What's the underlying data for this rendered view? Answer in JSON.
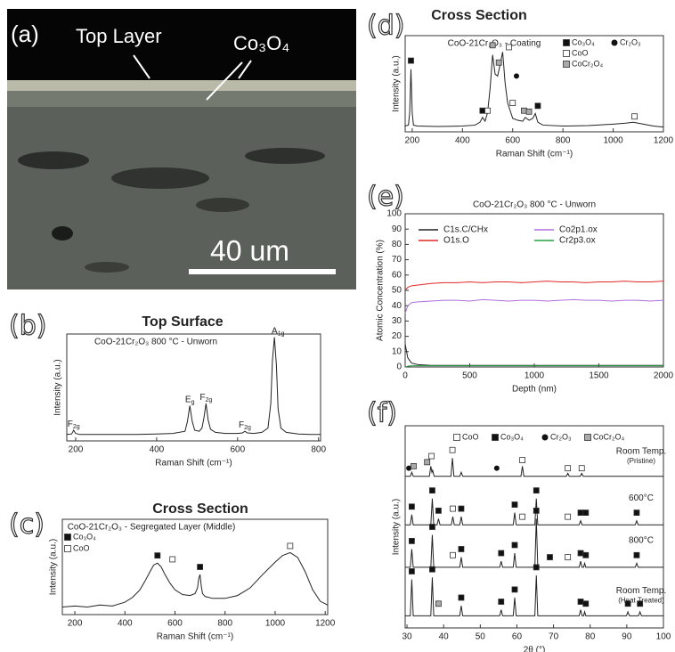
{
  "micrograph": {
    "panel": "(a)",
    "labels": [
      "Top Layer",
      "Co₃O₄",
      "40 um"
    ]
  },
  "chart_data": [
    {
      "type": "line",
      "panel": "(b)",
      "title": "Top Surface",
      "subtitle": "CoO-21Cr₂O₃ 800 °C - Unworn",
      "x_label": "Raman Shift (cm⁻¹)",
      "y_label": "Intensity (a.u.)",
      "xlim": [
        178,
        805
      ],
      "xticks": [
        200,
        400,
        600,
        800
      ],
      "ylim": [
        0,
        100
      ],
      "color": "#222222",
      "x": [
        178,
        190,
        195,
        200,
        210,
        250,
        300,
        350,
        400,
        440,
        470,
        476,
        482,
        488,
        494,
        505,
        512,
        517,
        522,
        527,
        533,
        545,
        570,
        600,
        612,
        618,
        624,
        640,
        660,
        675,
        682,
        686,
        691,
        696,
        700,
        707,
        720,
        750,
        780,
        805
      ],
      "values": [
        6,
        6.5,
        10,
        7,
        6,
        6,
        6,
        6,
        6.5,
        7,
        9,
        18,
        33,
        18,
        10,
        9,
        12,
        22,
        35,
        20,
        11,
        8,
        7,
        7,
        7.5,
        9,
        7.5,
        7,
        8,
        12,
        35,
        75,
        97,
        70,
        30,
        12,
        8,
        6.5,
        6,
        6
      ],
      "peak_labels": [
        {
          "base": "F",
          "sub": "2g",
          "x": 195,
          "y": 10
        },
        {
          "base": "E",
          "sub": "g",
          "x": 482,
          "y": 33
        },
        {
          "base": "F",
          "sub": "2g",
          "x": 522,
          "y": 35
        },
        {
          "base": "F",
          "sub": "2g",
          "x": 618,
          "y": 9
        },
        {
          "base": "A",
          "sub": "1g",
          "x": 700,
          "y": 97
        }
      ]
    },
    {
      "type": "line",
      "panel": "(c)",
      "title": "Cross Section",
      "subtitle": "CoO-21Cr₂O₃ - Segregated Layer (Middle)",
      "x_label": "Raman Shift (cm⁻¹)",
      "y_label": "Intensity (a.u.)",
      "xlim": [
        150,
        1210
      ],
      "xticks": [
        200,
        400,
        600,
        800,
        1000,
        1200
      ],
      "ylim": [
        0,
        100
      ],
      "color": "#222222",
      "x": [
        150,
        200,
        250,
        300,
        350,
        400,
        430,
        460,
        480,
        500,
        515,
        530,
        545,
        560,
        580,
        600,
        630,
        660,
        680,
        690,
        695,
        700,
        705,
        710,
        720,
        750,
        800,
        850,
        900,
        950,
        1000,
        1030,
        1060,
        1090,
        1120,
        1150,
        1180,
        1210
      ],
      "values": [
        8,
        9,
        8,
        10,
        9,
        13,
        18,
        26,
        35,
        45,
        52,
        54,
        50,
        42,
        33,
        26,
        21,
        20,
        22,
        28,
        38,
        42,
        30,
        22,
        19,
        17,
        17,
        20,
        28,
        42,
        55,
        62,
        65,
        60,
        45,
        26,
        14,
        10
      ],
      "legend": [
        {
          "name": "Co₃O₄",
          "shape": "filled-square"
        },
        {
          "name": "CoO",
          "shape": "open-square"
        }
      ],
      "markers": [
        {
          "x": 530,
          "y": 62,
          "phase": 0
        },
        {
          "x": 590,
          "y": 58,
          "phase": 1
        },
        {
          "x": 700,
          "y": 50,
          "phase": 0
        },
        {
          "x": 1060,
          "y": 72,
          "phase": 1
        }
      ]
    },
    {
      "type": "line",
      "panel": "(d)",
      "title": "Cross Section",
      "subtitle": "CoO-21Cr₂O₃ - Coating",
      "x_label": "Raman Shift (cm⁻¹)",
      "y_label": "Intensity (a.u.)",
      "xlim": [
        172,
        1200
      ],
      "xticks": [
        200,
        400,
        600,
        800,
        1000,
        1200
      ],
      "ylim": [
        0,
        100
      ],
      "color": "#222222",
      "x": [
        170,
        185,
        190,
        195,
        200,
        205,
        220,
        300,
        400,
        450,
        470,
        480,
        490,
        500,
        510,
        520,
        530,
        540,
        550,
        560,
        570,
        580,
        600,
        620,
        640,
        650,
        665,
        680,
        690,
        700,
        720,
        800,
        900,
        1000,
        1050,
        1080,
        1120,
        1160,
        1200
      ],
      "values": [
        6,
        7,
        20,
        65,
        20,
        7,
        6,
        5.5,
        6,
        7,
        10,
        15,
        11,
        20,
        45,
        80,
        60,
        58,
        70,
        83,
        50,
        30,
        14,
        12,
        11,
        15,
        12,
        14,
        19,
        10,
        7,
        6,
        6.5,
        8,
        9,
        10,
        8,
        6,
        5
      ],
      "legend": [
        {
          "name": "Co₃O₄",
          "shape": "filled-square"
        },
        {
          "name": "Cr₂O₃",
          "shape": "filled-circle"
        },
        {
          "name": "CoO",
          "shape": "open-square"
        },
        {
          "name": "CoCr₂O₄",
          "shape": "gray-square"
        }
      ],
      "markers": [
        {
          "x": 195,
          "y": 74,
          "phase": 0
        },
        {
          "x": 480,
          "y": 22,
          "phase": 0
        },
        {
          "x": 500,
          "y": 22,
          "phase": 2
        },
        {
          "x": 520,
          "y": 90,
          "phase": 3
        },
        {
          "x": 545,
          "y": 72,
          "phase": 3
        },
        {
          "x": 585,
          "y": 88,
          "phase": 2
        },
        {
          "x": 615,
          "y": 58,
          "phase": 1
        },
        {
          "x": 600,
          "y": 30,
          "phase": 2
        },
        {
          "x": 645,
          "y": 22,
          "phase": 3
        },
        {
          "x": 665,
          "y": 21,
          "phase": 3
        },
        {
          "x": 700,
          "y": 27,
          "phase": 0
        },
        {
          "x": 1085,
          "y": 16,
          "phase": 2
        }
      ]
    },
    {
      "type": "line",
      "panel": "(e)",
      "subtitle": "CoO-21Cr₂O₃ 800 °C - Unworn",
      "x_label": "Depth (nm)",
      "y_label": "Atomic Concentration (%)",
      "xlim": [
        0,
        2000
      ],
      "xticks": [
        0,
        500,
        1000,
        1500,
        2000
      ],
      "ylim": [
        0,
        100
      ],
      "yticks": [
        0,
        10,
        20,
        30,
        40,
        50,
        60,
        70,
        80,
        90,
        100
      ],
      "x": [
        0,
        20,
        50,
        100,
        200,
        300,
        400,
        500,
        600,
        700,
        800,
        900,
        1000,
        1100,
        1200,
        1300,
        1400,
        1500,
        1600,
        1700,
        1800,
        1900,
        2000
      ],
      "series": [
        {
          "name": "C1s.C/CHx",
          "color": "#222222",
          "values": [
            15,
            6,
            2.5,
            1.5,
            1,
            1,
            1,
            1,
            1,
            1,
            1,
            1,
            1,
            1,
            1,
            1,
            1,
            1,
            1,
            1,
            1,
            1,
            1
          ]
        },
        {
          "name": "Co2p1.ox",
          "color": "#b070e0",
          "values": [
            35,
            40,
            42,
            42.5,
            43,
            43.5,
            43.5,
            43,
            44,
            43.5,
            43,
            43.5,
            43.5,
            43,
            43.5,
            44,
            43.5,
            43.5,
            43,
            43.5,
            43.5,
            43,
            43.5
          ]
        },
        {
          "name": "O1s.O",
          "color": "#e02828",
          "values": [
            50,
            52,
            53,
            53.5,
            54.5,
            55,
            55,
            55.5,
            55,
            55.5,
            55.5,
            55,
            55.5,
            56,
            55.5,
            55.5,
            55,
            55.5,
            55.5,
            56,
            55.5,
            55.5,
            56
          ]
        },
        {
          "name": "Cr2p3.ox",
          "color": "#22a044",
          "values": [
            0,
            0.5,
            0.8,
            0.8,
            0.8,
            0.8,
            0.8,
            0.8,
            0.8,
            0.8,
            0.8,
            0.8,
            0.8,
            0.8,
            0.8,
            0.8,
            0.8,
            0.8,
            0.8,
            0.8,
            0.8,
            0.8,
            0.8
          ]
        }
      ]
    },
    {
      "type": "line",
      "panel": "(f)",
      "x_label": "2θ (°)",
      "y_label": "Intensity (a.u.)",
      "xlim": [
        29.5,
        100
      ],
      "xticks": [
        30,
        40,
        50,
        60,
        70,
        80,
        90,
        100
      ],
      "ylim": [
        0,
        100
      ],
      "color": "#222222",
      "legend": [
        {
          "name": "CoO",
          "shape": "open-square"
        },
        {
          "name": "Co₃O₄",
          "shape": "filled-square"
        },
        {
          "name": "Cr₂O₃",
          "shape": "filled-circle"
        },
        {
          "name": "CoCr₂O₄",
          "shape": "gray-square"
        }
      ],
      "series": [
        {
          "name": "Room Temp.",
          "sublabel": "(Pristine)",
          "x": [
            29.5,
            30.9,
            31.3,
            31.7,
            36.1,
            36.5,
            36.8,
            37,
            37.4,
            42,
            42.4,
            42.8,
            44.4,
            44.8,
            45.2,
            61.1,
            61.5,
            61.9,
            73.5,
            73.9,
            74.3,
            77.3,
            77.7,
            78.1,
            100
          ],
          "values": [
            75,
            75,
            77,
            75,
            75,
            80,
            77,
            78,
            75,
            75,
            84,
            75,
            75,
            77,
            75,
            75,
            80,
            75,
            75,
            76.5,
            75,
            75,
            76.5,
            75,
            75
          ]
        },
        {
          "name": "600°C",
          "x": [
            29.5,
            30.9,
            31.3,
            31.7,
            36.5,
            36.9,
            37.3,
            38.2,
            38.6,
            39,
            42.1,
            42.5,
            42.9,
            44.4,
            44.8,
            45.2,
            59,
            59.4,
            59.8,
            64.9,
            65.3,
            65.7,
            77,
            77.4,
            77.8,
            92.3,
            92.7,
            93.1,
            100
          ],
          "values": [
            51,
            51,
            56,
            51,
            51,
            64,
            51,
            51,
            54,
            51,
            51,
            55,
            51,
            51,
            55,
            51,
            51,
            57,
            51,
            51,
            64,
            51,
            51,
            53,
            51,
            51,
            53,
            51,
            51
          ]
        },
        {
          "name": "800°C",
          "x": [
            29.5,
            30.9,
            31.3,
            31.7,
            36.5,
            36.9,
            37.3,
            44.4,
            44.8,
            45.2,
            55.3,
            55.7,
            56.1,
            59,
            59.4,
            59.8,
            64.9,
            65.3,
            65.7,
            77,
            77.4,
            77.8,
            78.2,
            78.5,
            78.8,
            92.3,
            92.7,
            93.1,
            100
          ],
          "values": [
            30,
            30,
            39,
            30,
            30,
            46,
            30,
            30,
            35,
            30,
            30,
            33,
            30,
            30,
            37,
            30,
            30,
            54,
            30,
            30,
            33,
            30,
            30,
            32,
            30,
            30,
            32,
            30,
            30
          ]
        },
        {
          "name": "Room Temp.",
          "sublabel": "(Heat Treated)",
          "x": [
            29.5,
            30.9,
            31.3,
            31.7,
            36.5,
            36.9,
            37.3,
            44.4,
            44.8,
            45.2,
            55.3,
            55.7,
            56.1,
            59,
            59.4,
            59.8,
            64.9,
            65.3,
            65.7,
            77,
            77.4,
            77.8,
            78.2,
            78.5,
            78.8,
            89.9,
            90.3,
            90.7,
            93.2,
            93.6,
            94,
            100
          ],
          "values": [
            6,
            6,
            24,
            6,
            6,
            25,
            6,
            6,
            11,
            6,
            6,
            9,
            6,
            6,
            15,
            6,
            6,
            26,
            6,
            6,
            9,
            6,
            6,
            8,
            6,
            6,
            8,
            6,
            6,
            8,
            6,
            6
          ]
        }
      ],
      "markers": [
        {
          "x": 30.5,
          "y": 79,
          "phase": 2
        },
        {
          "x": 31.8,
          "y": 80,
          "phase": 3
        },
        {
          "x": 35.5,
          "y": 82,
          "phase": 3
        },
        {
          "x": 36.7,
          "y": 85,
          "phase": 0
        },
        {
          "x": 42.4,
          "y": 88,
          "phase": 0
        },
        {
          "x": 54.5,
          "y": 79,
          "phase": 2
        },
        {
          "x": 61.5,
          "y": 83,
          "phase": 0
        },
        {
          "x": 73.9,
          "y": 79,
          "phase": 0
        },
        {
          "x": 77.7,
          "y": 79,
          "phase": 0
        },
        {
          "x": 31.3,
          "y": 60,
          "phase": 1
        },
        {
          "x": 36.9,
          "y": 68,
          "phase": 1
        },
        {
          "x": 38.6,
          "y": 58,
          "phase": 1
        },
        {
          "x": 42.5,
          "y": 59,
          "phase": 0
        },
        {
          "x": 44.8,
          "y": 59,
          "phase": 1
        },
        {
          "x": 59.4,
          "y": 61,
          "phase": 1
        },
        {
          "x": 61.5,
          "y": 55,
          "phase": 0
        },
        {
          "x": 65.3,
          "y": 68,
          "phase": 1
        },
        {
          "x": 73.9,
          "y": 55,
          "phase": 0
        },
        {
          "x": 77.4,
          "y": 57,
          "phase": 1
        },
        {
          "x": 78.8,
          "y": 57,
          "phase": 1
        },
        {
          "x": 92.7,
          "y": 57,
          "phase": 1
        },
        {
          "x": 31.3,
          "y": 43,
          "phase": 1
        },
        {
          "x": 36.9,
          "y": 50,
          "phase": 1
        },
        {
          "x": 42.5,
          "y": 36,
          "phase": 0
        },
        {
          "x": 44.8,
          "y": 39,
          "phase": 1
        },
        {
          "x": 55.7,
          "y": 37,
          "phase": 1
        },
        {
          "x": 59.4,
          "y": 41,
          "phase": 1
        },
        {
          "x": 65.3,
          "y": 58,
          "phase": 1
        },
        {
          "x": 69,
          "y": 35,
          "phase": 1
        },
        {
          "x": 73.9,
          "y": 35,
          "phase": 0
        },
        {
          "x": 77.4,
          "y": 37,
          "phase": 1
        },
        {
          "x": 78.8,
          "y": 36,
          "phase": 1
        },
        {
          "x": 92.7,
          "y": 36,
          "phase": 1
        },
        {
          "x": 31.3,
          "y": 28,
          "phase": 1
        },
        {
          "x": 36.9,
          "y": 29,
          "phase": 1
        },
        {
          "x": 38.6,
          "y": 12,
          "phase": 3
        },
        {
          "x": 44.8,
          "y": 15,
          "phase": 1
        },
        {
          "x": 55.7,
          "y": 13,
          "phase": 1
        },
        {
          "x": 59.4,
          "y": 19,
          "phase": 1
        },
        {
          "x": 65.3,
          "y": 30,
          "phase": 1
        },
        {
          "x": 77.4,
          "y": 13,
          "phase": 1
        },
        {
          "x": 78.8,
          "y": 12,
          "phase": 1
        },
        {
          "x": 90.3,
          "y": 12,
          "phase": 1
        },
        {
          "x": 93.6,
          "y": 12,
          "phase": 1
        }
      ]
    }
  ]
}
